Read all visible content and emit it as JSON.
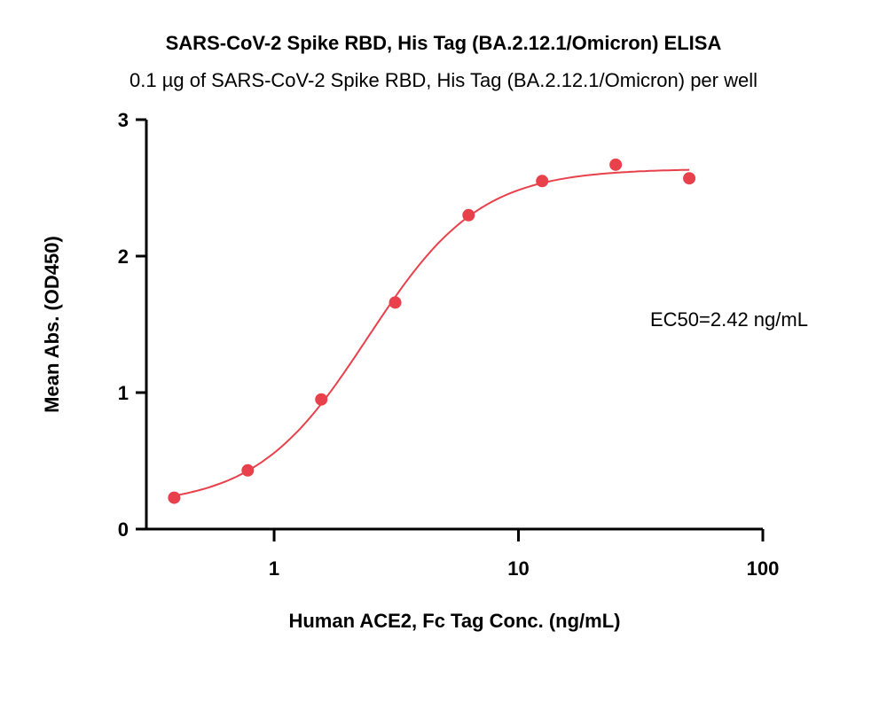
{
  "chart_data": {
    "type": "scatter",
    "title": "SARS-CoV-2 Spike RBD, His Tag (BA.2.12.1/Omicron) ELISA",
    "subtitle": "0.1 µg of SARS-CoV-2 Spike RBD, His Tag (BA.2.12.1/Omicron) per well",
    "xlabel": "Human ACE2, Fc Tag Conc. (ng/mL)",
    "ylabel": "Mean Abs. (OD450)",
    "x_scale": "log",
    "xlim": [
      0.3,
      100
    ],
    "ylim": [
      0,
      3
    ],
    "x_ticks": [
      "1",
      "10",
      "100"
    ],
    "y_ticks": [
      "0",
      "1",
      "2",
      "3"
    ],
    "series": [
      {
        "x": [
          0.39,
          0.78,
          1.56,
          3.13,
          6.25,
          12.5,
          25,
          50
        ],
        "y": [
          0.23,
          0.43,
          0.95,
          1.66,
          2.3,
          2.55,
          2.67,
          2.57
        ],
        "fit": "4PL"
      }
    ],
    "annotation": "EC50=2.42 ng/mL",
    "ec50": 2.42,
    "colors": {
      "series": "#e8414b"
    },
    "grid": false
  }
}
